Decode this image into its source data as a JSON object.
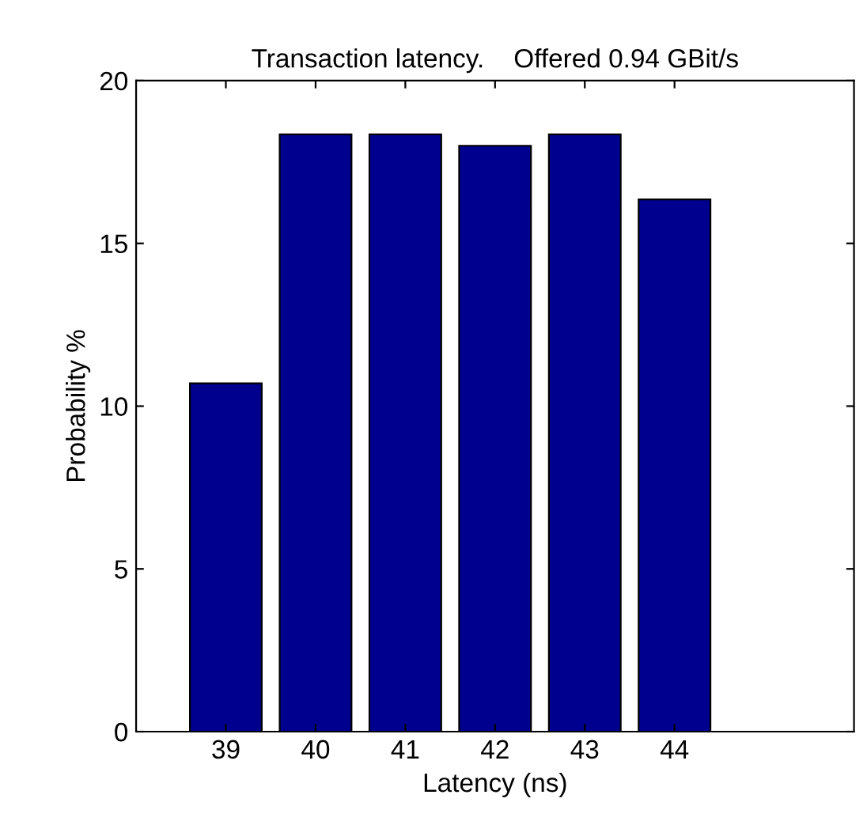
{
  "chart_data": {
    "type": "bar",
    "title": "Transaction latency.    Offered 0.94 GBit/s",
    "xlabel": "Latency (ns)",
    "ylabel": "Probability %",
    "x": [
      39,
      40,
      41,
      42,
      43,
      44
    ],
    "values": [
      10.7,
      18.35,
      18.35,
      18.0,
      18.35,
      16.35
    ],
    "color": "#00008f",
    "xlim": [
      38,
      46
    ],
    "xticks": [
      39,
      40,
      41,
      42,
      43,
      44
    ],
    "ylim": [
      0,
      20
    ],
    "yticks": [
      0,
      5,
      10,
      15,
      20
    ],
    "grid": false
  }
}
